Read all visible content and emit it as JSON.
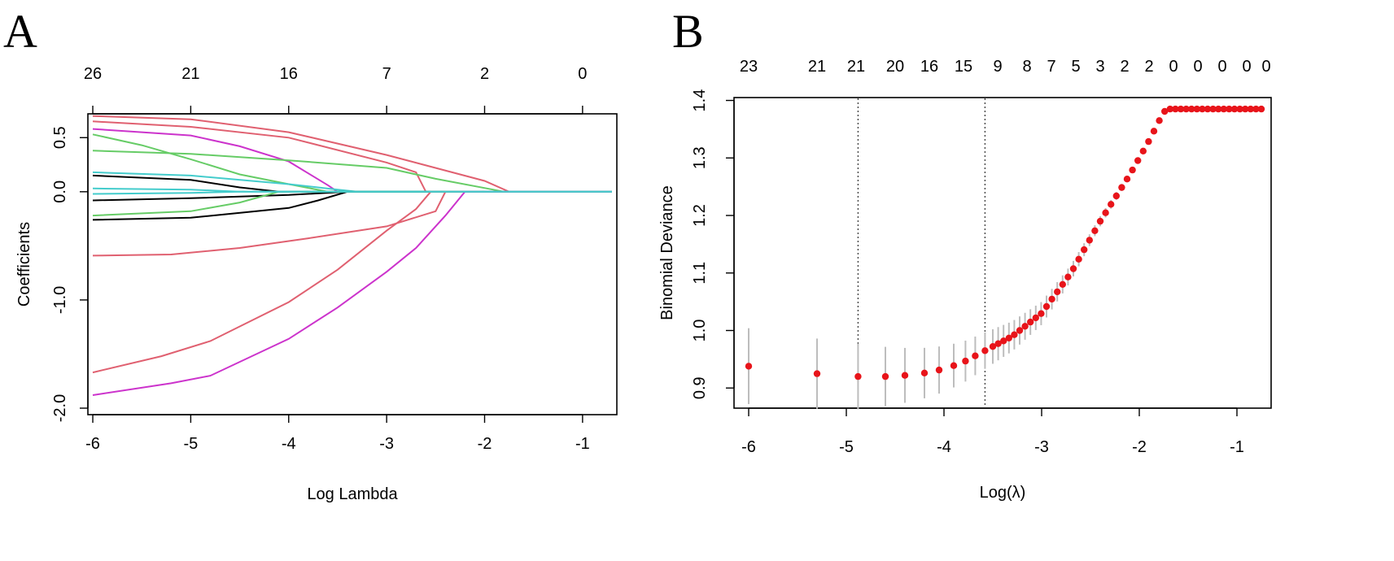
{
  "panels": {
    "a_letter": "A",
    "b_letter": "B"
  },
  "chart_data": [
    {
      "type": "line",
      "title": "",
      "xlabel": "Log Lambda",
      "ylabel": "Coefficients",
      "xlim": [
        -6.05,
        -0.65
      ],
      "ylim": [
        -2.06,
        0.72
      ],
      "x_ticks": [
        -6,
        -5,
        -4,
        -3,
        -2,
        -1
      ],
      "y_ticks": [
        0.5,
        0.0,
        -1.0,
        -2.0
      ],
      "y_tick_labels": [
        "0.5",
        "0.0",
        "-1.0",
        "-2.0"
      ],
      "top_axis": {
        "positions": [
          -6,
          -5,
          -4,
          -3,
          -2,
          -1
        ],
        "labels": [
          "26",
          "21",
          "16",
          "7",
          "2",
          "0"
        ]
      },
      "series": [
        {
          "color": "#e06070",
          "points": [
            [
              -6,
              0.7
            ],
            [
              -5,
              0.67
            ],
            [
              -4,
              0.55
            ],
            [
              -3,
              0.34
            ],
            [
              -2,
              0.1
            ],
            [
              -1.75,
              0
            ],
            [
              -0.7,
              0
            ]
          ]
        },
        {
          "color": "#e06070",
          "points": [
            [
              -6,
              0.65
            ],
            [
              -5,
              0.6
            ],
            [
              -4,
              0.5
            ],
            [
              -3,
              0.27
            ],
            [
              -2.7,
              0.18
            ],
            [
              -2.6,
              0
            ],
            [
              -0.7,
              0
            ]
          ]
        },
        {
          "color": "#cc33cc",
          "points": [
            [
              -6,
              0.58
            ],
            [
              -5,
              0.52
            ],
            [
              -4.5,
              0.42
            ],
            [
              -4,
              0.28
            ],
            [
              -3.6,
              0.06
            ],
            [
              -3.5,
              0
            ],
            [
              -0.7,
              0
            ]
          ]
        },
        {
          "color": "#66cc66",
          "points": [
            [
              -6,
              0.53
            ],
            [
              -5.5,
              0.43
            ],
            [
              -5,
              0.3
            ],
            [
              -4.5,
              0.16
            ],
            [
              -4,
              0.07
            ],
            [
              -3.6,
              0
            ],
            [
              -0.7,
              0
            ]
          ]
        },
        {
          "color": "#66cc66",
          "points": [
            [
              -6,
              0.38
            ],
            [
              -5,
              0.35
            ],
            [
              -4,
              0.29
            ],
            [
              -3,
              0.22
            ],
            [
              -2.5,
              0.12
            ],
            [
              -1.8,
              0
            ],
            [
              -0.7,
              0
            ]
          ]
        },
        {
          "color": "#44cccc",
          "points": [
            [
              -6,
              0.18
            ],
            [
              -5,
              0.15
            ],
            [
              -4,
              0.07
            ],
            [
              -3.5,
              0.02
            ],
            [
              -3.3,
              0
            ],
            [
              -0.7,
              0
            ]
          ]
        },
        {
          "color": "#000000",
          "points": [
            [
              -6,
              0.15
            ],
            [
              -5,
              0.11
            ],
            [
              -4.5,
              0.04
            ],
            [
              -4.1,
              0
            ],
            [
              -0.7,
              0
            ]
          ]
        },
        {
          "color": "#000000",
          "points": [
            [
              -6,
              -0.08
            ],
            [
              -5,
              -0.06
            ],
            [
              -4,
              -0.03
            ],
            [
              -3.4,
              0
            ],
            [
              -0.7,
              0
            ]
          ]
        },
        {
          "color": "#000000",
          "points": [
            [
              -6,
              -0.26
            ],
            [
              -5,
              -0.24
            ],
            [
              -4,
              -0.15
            ],
            [
              -3.7,
              -0.08
            ],
            [
              -3.4,
              0
            ],
            [
              -0.7,
              0
            ]
          ]
        },
        {
          "color": "#66cc66",
          "points": [
            [
              -6,
              -0.22
            ],
            [
              -5,
              -0.18
            ],
            [
              -4.5,
              -0.1
            ],
            [
              -4.1,
              0
            ],
            [
              -0.7,
              0
            ]
          ]
        },
        {
          "color": "#e06070",
          "points": [
            [
              -6,
              -0.59
            ],
            [
              -5.2,
              -0.58
            ],
            [
              -4.5,
              -0.52
            ],
            [
              -3.8,
              -0.43
            ],
            [
              -3,
              -0.32
            ],
            [
              -2.5,
              -0.18
            ],
            [
              -2.4,
              0
            ],
            [
              -0.7,
              0
            ]
          ]
        },
        {
          "color": "#e06070",
          "points": [
            [
              -6,
              -1.67
            ],
            [
              -5.3,
              -1.52
            ],
            [
              -4.8,
              -1.38
            ],
            [
              -4,
              -1.02
            ],
            [
              -3.5,
              -0.72
            ],
            [
              -3,
              -0.36
            ],
            [
              -2.7,
              -0.16
            ],
            [
              -2.55,
              0
            ],
            [
              -0.7,
              0
            ]
          ]
        },
        {
          "color": "#cc33cc",
          "points": [
            [
              -6,
              -1.88
            ],
            [
              -5.2,
              -1.77
            ],
            [
              -4.8,
              -1.7
            ],
            [
              -4,
              -1.36
            ],
            [
              -3.5,
              -1.07
            ],
            [
              -3,
              -0.74
            ],
            [
              -2.7,
              -0.52
            ],
            [
              -2.4,
              -0.22
            ],
            [
              -2.2,
              0
            ],
            [
              -0.7,
              0
            ]
          ]
        },
        {
          "color": "#44cccc",
          "points": [
            [
              -6,
              0.03
            ],
            [
              -5,
              0.02
            ],
            [
              -4.5,
              0.0
            ],
            [
              -0.7,
              0
            ]
          ]
        },
        {
          "color": "#44cccc",
          "points": [
            [
              -6,
              -0.02
            ],
            [
              -5,
              -0.01
            ],
            [
              -4.5,
              0.0
            ],
            [
              -0.7,
              0
            ]
          ]
        }
      ]
    },
    {
      "type": "scatter",
      "title": "",
      "xlabel": "Log(λ)",
      "ylabel": "Binomial Deviance",
      "xlim": [
        -6.15,
        -0.65
      ],
      "ylim": [
        0.865,
        1.405
      ],
      "x_ticks": [
        -6,
        -5,
        -4,
        -3,
        -2,
        -1
      ],
      "y_ticks": [
        0.9,
        1.0,
        1.1,
        1.2,
        1.3,
        1.4
      ],
      "y_tick_labels": [
        "0.9",
        "1.0",
        "1.1",
        "1.2",
        "1.3",
        "1.4"
      ],
      "top_axis": {
        "positions": [
          -6,
          -5.3,
          -4.9,
          -4.5,
          -4.15,
          -3.8,
          -3.45,
          -3.15,
          -2.9,
          -2.65,
          -2.4,
          -2.15,
          -1.9,
          -1.65,
          -1.4,
          -1.15,
          -0.9,
          -0.7
        ],
        "labels": [
          "23",
          "21",
          "21",
          "20",
          "16",
          "15",
          "9",
          "8",
          "7",
          "5",
          "3",
          "2",
          "2",
          "0",
          "0",
          "0",
          "0",
          "0"
        ]
      },
      "vlines": [
        -4.88,
        -3.58
      ],
      "curve": {
        "x_start": -6.0,
        "x_end": -0.7,
        "anchors": [
          [
            -6.0,
            0.938
          ],
          [
            -5.3,
            0.925
          ],
          [
            -4.88,
            0.92
          ],
          [
            -4.6,
            0.92
          ],
          [
            -4.4,
            0.922
          ],
          [
            -4.2,
            0.926
          ],
          [
            -4.0,
            0.933
          ],
          [
            -3.8,
            0.945
          ],
          [
            -3.58,
            0.965
          ],
          [
            -3.3,
            0.99
          ],
          [
            -3.0,
            1.03
          ],
          [
            -2.7,
            1.1
          ],
          [
            -2.4,
            1.19
          ],
          [
            -2.1,
            1.27
          ],
          [
            -1.9,
            1.33
          ],
          [
            -1.75,
            1.38
          ],
          [
            -1.7,
            1.385
          ],
          [
            -0.7,
            1.385
          ]
        ],
        "error_anchors": [
          [
            -6.0,
            0.066
          ],
          [
            -5.3,
            0.061
          ],
          [
            -4.88,
            0.057
          ],
          [
            -4.0,
            0.04
          ],
          [
            -3.5,
            0.03
          ],
          [
            -3.0,
            0.02
          ],
          [
            -2.5,
            0.01
          ],
          [
            -2.0,
            0.004
          ],
          [
            -1.7,
            0.002
          ],
          [
            -0.7,
            0.002
          ]
        ]
      },
      "sparse_points_x": [
        -6.0,
        -5.3,
        -4.88,
        -4.6,
        -4.4,
        -4.2,
        -4.05,
        -3.9,
        -3.78,
        -3.68,
        -3.58
      ],
      "dense_start_x": -3.5,
      "dense_step": 0.055
    }
  ]
}
